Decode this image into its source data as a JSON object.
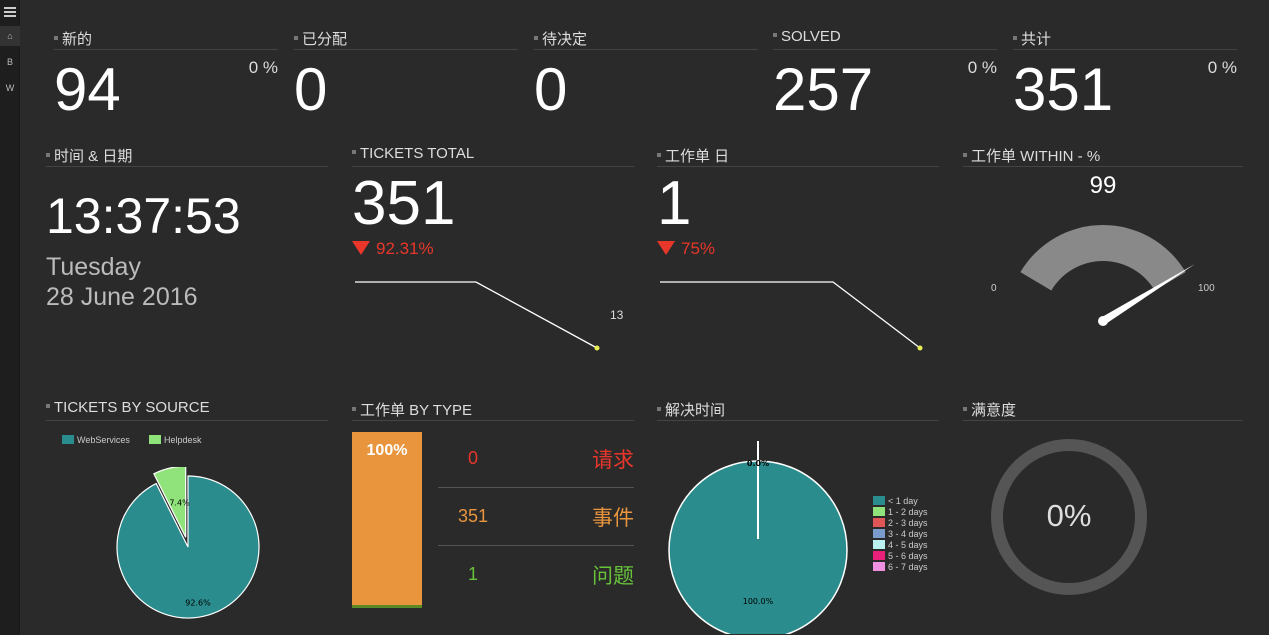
{
  "sidebar": {
    "home_icon": "home-icon",
    "b_label": "B",
    "w_label": "W"
  },
  "stats": [
    {
      "title": "新的",
      "value": "94",
      "percent": "0 %"
    },
    {
      "title": "已分配",
      "value": "0",
      "percent": ""
    },
    {
      "title": "待决定",
      "value": "0",
      "percent": ""
    },
    {
      "title": "SOLVED",
      "value": "257",
      "percent": "0 %"
    },
    {
      "title": "共计",
      "value": "351",
      "percent": "0 %"
    }
  ],
  "datetime": {
    "title": "时间 & 日期",
    "time": "13:37:53",
    "day": "Tuesday",
    "date": "28 June 2016"
  },
  "tickets_total": {
    "title": "TICKETS TOTAL",
    "value": "351",
    "change": "92.31%",
    "spark_label": "13"
  },
  "tickets_day": {
    "title": "工作单 日",
    "value": "1",
    "change": "75%"
  },
  "within": {
    "title": "工作单 WITHIN - %",
    "value": "99",
    "min_label": "0",
    "max_label": "100",
    "fraction": 0.99
  },
  "by_source": {
    "title": "TICKETS BY SOURCE",
    "legend": [
      {
        "label": "WebServices",
        "color": "#2a8c8c"
      },
      {
        "label": "Helpdesk",
        "color": "#8fe37a"
      }
    ],
    "slices": [
      {
        "name": "WebServices",
        "value": 92.6,
        "label": "92.6%"
      },
      {
        "name": "Helpdesk",
        "value": 7.4,
        "label": "7.4%"
      }
    ]
  },
  "by_type": {
    "title": "工作单 BY TYPE",
    "bar_label": "100%",
    "rows": [
      {
        "count": "0",
        "label": "请求",
        "color": "#e8372a"
      },
      {
        "count": "351",
        "label": "事件",
        "color": "#e8953e"
      },
      {
        "count": "1",
        "label": "问题",
        "color": "#67c23a"
      }
    ]
  },
  "resolution": {
    "title": "解决时间",
    "top_label": "0.0%",
    "bottom_label": "100.0%",
    "legend": [
      {
        "label": "< 1 day",
        "color": "#2a8c8c"
      },
      {
        "label": "1 - 2 days",
        "color": "#8fe37a"
      },
      {
        "label": "2 - 3 days",
        "color": "#e05555"
      },
      {
        "label": "3 - 4 days",
        "color": "#7a9ccc"
      },
      {
        "label": "4 - 5 days",
        "color": "#b9f0f0"
      },
      {
        "label": "5 - 6 days",
        "color": "#e8207a"
      },
      {
        "label": "6 - 7 days",
        "color": "#f090e0"
      }
    ]
  },
  "satisfaction": {
    "title": "满意度",
    "value": "0%"
  }
}
